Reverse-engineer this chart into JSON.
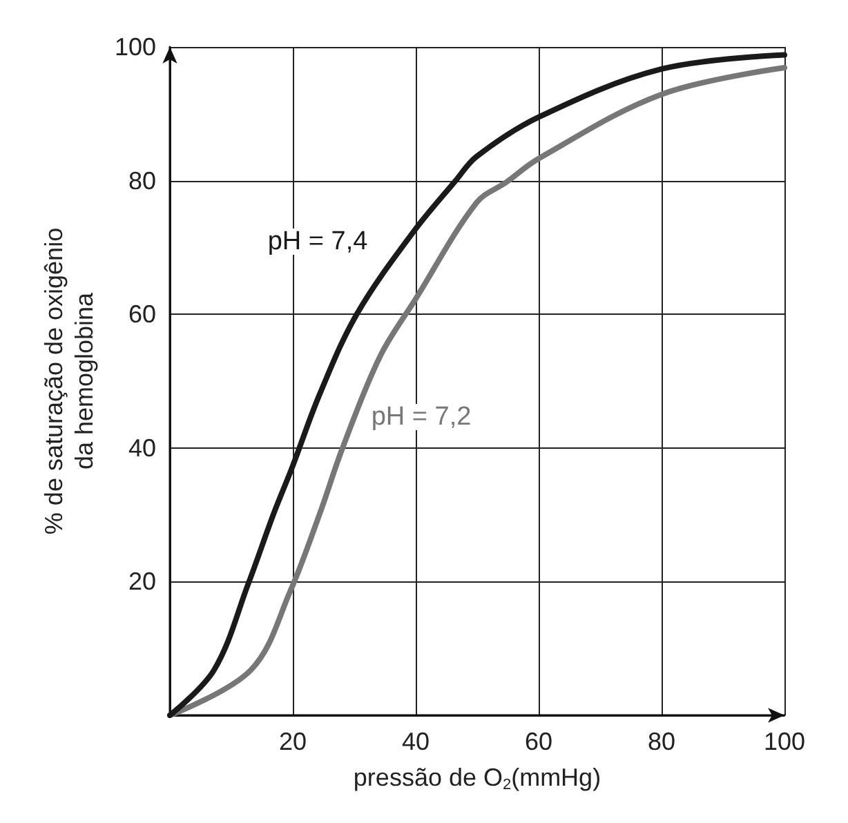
{
  "chart_data": {
    "type": "line",
    "xlabel": "pressão de O$_{2}$(mmHg)",
    "ylabel": "% de saturação de oxigênio\nda hemoglobina",
    "xlim": [
      0,
      100
    ],
    "ylim": [
      0,
      100
    ],
    "xticks": [
      20,
      40,
      60,
      80,
      100
    ],
    "yticks": [
      20,
      40,
      60,
      80,
      100
    ],
    "grid": true,
    "marker": "none",
    "line_style": "solid",
    "series": [
      {
        "color": "#1a1a1a",
        "x": [
          0,
          7.2,
          12.8,
          16.9,
          19.9,
          24.4,
          30.4,
          39.6,
          46.5,
          49.9,
          60,
          80,
          100
        ],
        "values": [
          0,
          6.8,
          19.8,
          30.2,
          37.1,
          48.1,
          60,
          72.3,
          80,
          83.6,
          89.5,
          96.7,
          98.8
        ]
      },
      {
        "color": "#777777",
        "x": [
          0,
          13.2,
          19.6,
          24.4,
          28.1,
          34.2,
          40,
          49.9,
          54.8,
          60,
          80,
          100
        ],
        "values": [
          0,
          6.8,
          18.6,
          30.2,
          40,
          53.7,
          62.3,
          76.7,
          79.8,
          83.3,
          92.9,
          96.9
        ]
      }
    ],
    "annotations": [
      "pH = 7,4",
      "pH = 7,2"
    ]
  }
}
